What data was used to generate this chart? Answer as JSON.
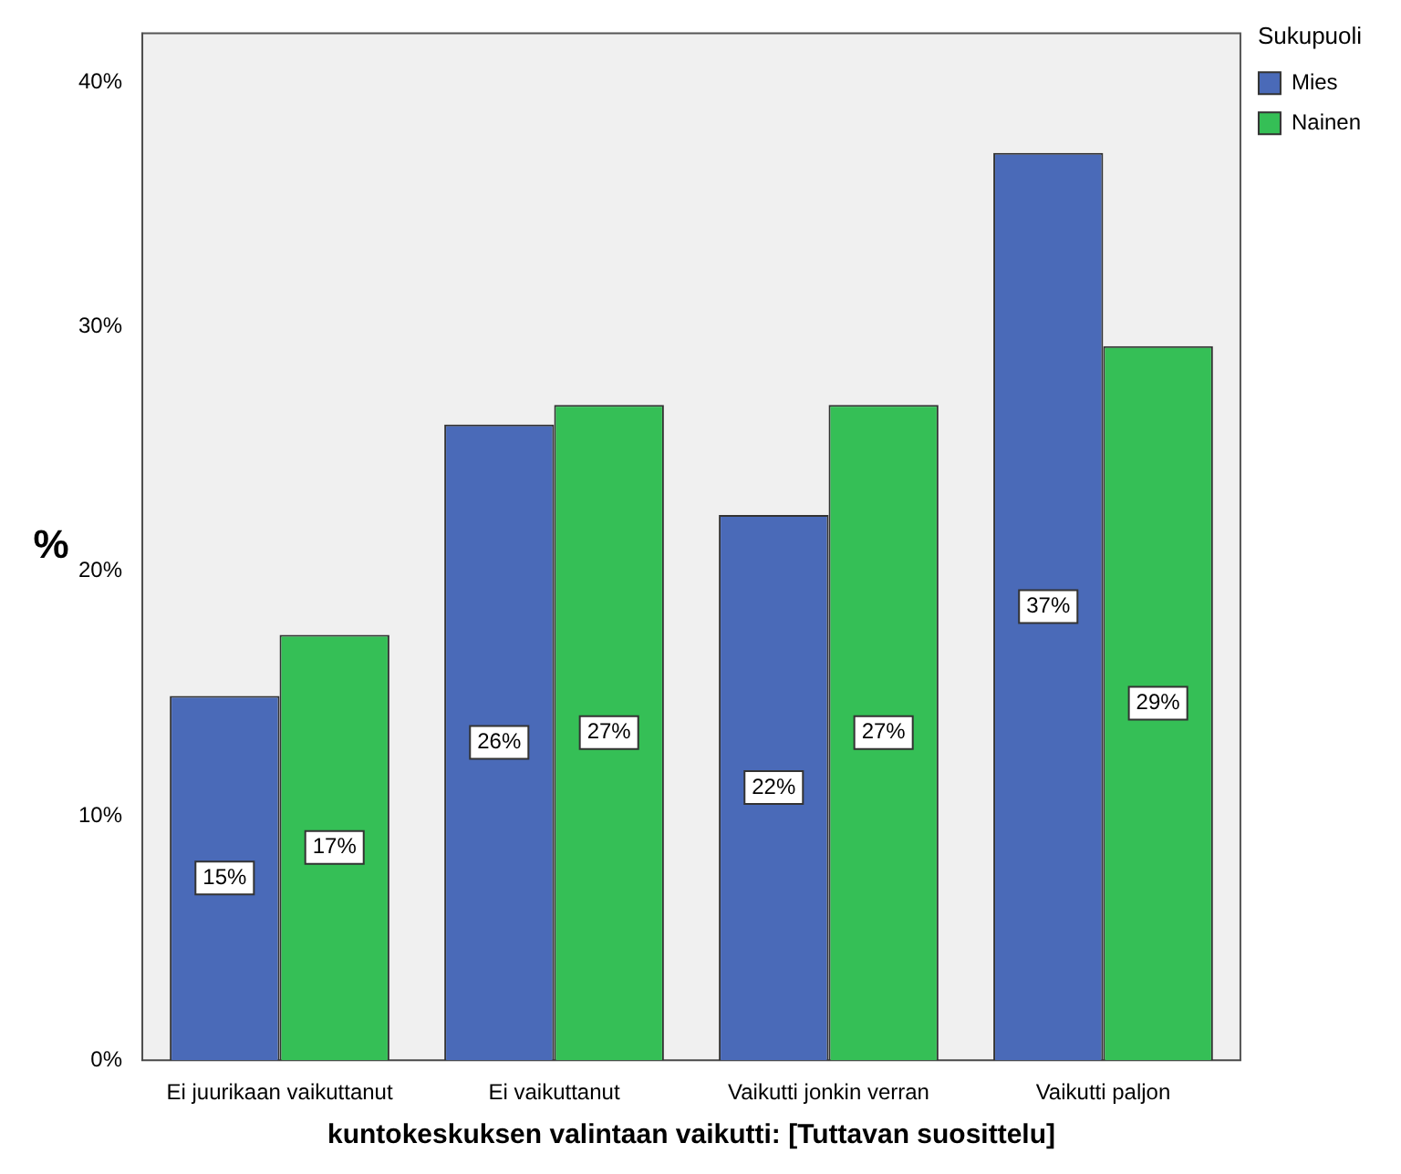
{
  "chart_data": {
    "type": "bar",
    "categories": [
      "Ei juurikaan vaikuttanut",
      "Ei vaikuttanut",
      "Vaikutti jonkin verran",
      "Vaikutti paljon"
    ],
    "series": [
      {
        "name": "Mies",
        "color": "#4a6ab8",
        "values": [
          14.9,
          26.0,
          22.3,
          37.1
        ],
        "value_labels": [
          "15%",
          "26%",
          "22%",
          "37%"
        ]
      },
      {
        "name": "Nainen",
        "color": "#35bf56",
        "values": [
          17.4,
          26.8,
          26.8,
          29.2
        ],
        "value_labels": [
          "17%",
          "27%",
          "27%",
          "29%"
        ]
      }
    ],
    "xlabel": "kuntokeskuksen valintaan vaikutti: [Tuttavan suosittelu]",
    "ylabel": "%",
    "legend_title": "Sukupuoli",
    "ylim": [
      0,
      42
    ],
    "yticks": [
      {
        "value": 0,
        "label": "0%"
      },
      {
        "value": 10,
        "label": "10%"
      },
      {
        "value": 20,
        "label": "20%"
      },
      {
        "value": 30,
        "label": "30%"
      },
      {
        "value": 40,
        "label": "40%"
      }
    ],
    "grid": false,
    "legend": "top right"
  }
}
